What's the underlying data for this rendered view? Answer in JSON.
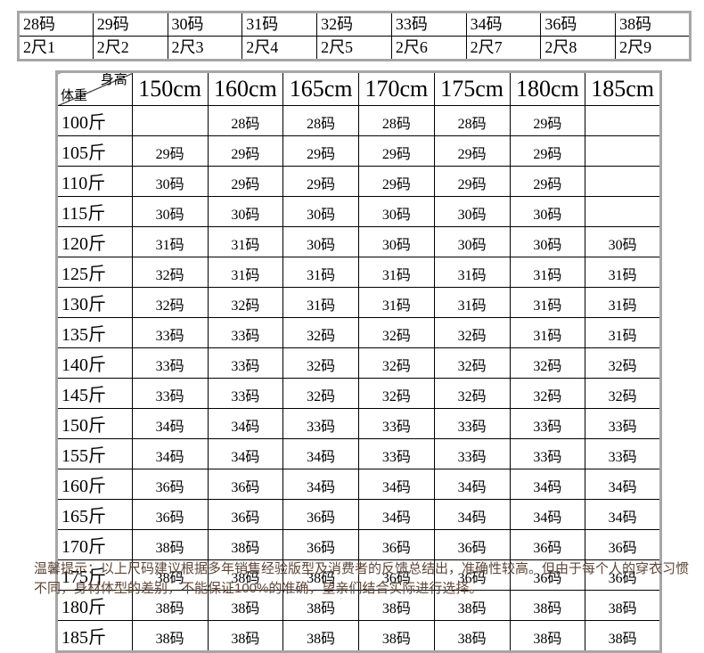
{
  "conversion_table": {
    "rows": [
      [
        "28码",
        "29码",
        "30码",
        "31码",
        "32码",
        "33码",
        "34码",
        "36码",
        "38码"
      ],
      [
        "2尺1",
        "2尺2",
        "2尺3",
        "2尺4",
        "2尺5",
        "2尺6",
        "2尺7",
        "2尺8",
        "2尺9"
      ]
    ]
  },
  "size_chart": {
    "corner": {
      "top_label": "身高",
      "bottom_label": "体重"
    },
    "height_headers": [
      "150cm",
      "160cm",
      "165cm",
      "170cm",
      "175cm",
      "180cm",
      "185cm"
    ],
    "rows": [
      {
        "weight": "100斤",
        "sizes": [
          "",
          "28码",
          "28码",
          "28码",
          "28码",
          "29码",
          ""
        ]
      },
      {
        "weight": "105斤",
        "sizes": [
          "29码",
          "29码",
          "29码",
          "29码",
          "29码",
          "29码",
          ""
        ]
      },
      {
        "weight": "110斤",
        "sizes": [
          "30码",
          "29码",
          "29码",
          "29码",
          "29码",
          "29码",
          ""
        ]
      },
      {
        "weight": "115斤",
        "sizes": [
          "30码",
          "30码",
          "30码",
          "30码",
          "30码",
          "30码",
          ""
        ]
      },
      {
        "weight": "120斤",
        "sizes": [
          "31码",
          "31码",
          "30码",
          "30码",
          "30码",
          "30码",
          "30码"
        ]
      },
      {
        "weight": "125斤",
        "sizes": [
          "32码",
          "31码",
          "31码",
          "31码",
          "31码",
          "31码",
          "31码"
        ]
      },
      {
        "weight": "130斤",
        "sizes": [
          "32码",
          "32码",
          "31码",
          "31码",
          "31码",
          "31码",
          "31码"
        ]
      },
      {
        "weight": "135斤",
        "sizes": [
          "33码",
          "33码",
          "32码",
          "32码",
          "32码",
          "31码",
          "31码"
        ]
      },
      {
        "weight": "140斤",
        "sizes": [
          "33码",
          "33码",
          "32码",
          "32码",
          "32码",
          "32码",
          "32码"
        ]
      },
      {
        "weight": "145斤",
        "sizes": [
          "33码",
          "33码",
          "32码",
          "32码",
          "32码",
          "32码",
          "32码"
        ]
      },
      {
        "weight": "150斤",
        "sizes": [
          "34码",
          "34码",
          "33码",
          "33码",
          "33码",
          "33码",
          "33码"
        ]
      },
      {
        "weight": "155斤",
        "sizes": [
          "34码",
          "34码",
          "34码",
          "33码",
          "33码",
          "33码",
          "33码"
        ]
      },
      {
        "weight": "160斤",
        "sizes": [
          "36码",
          "36码",
          "34码",
          "34码",
          "34码",
          "34码",
          "34码"
        ]
      },
      {
        "weight": "165斤",
        "sizes": [
          "36码",
          "36码",
          "36码",
          "34码",
          "34码",
          "34码",
          "34码"
        ]
      },
      {
        "weight": "170斤",
        "sizes": [
          "38码",
          "38码",
          "36码",
          "36码",
          "36码",
          "36码",
          "36码"
        ]
      },
      {
        "weight": "175斤",
        "sizes": [
          "38码",
          "38码",
          "38码",
          "36码",
          "36码",
          "36码",
          "36码"
        ]
      },
      {
        "weight": "180斤",
        "sizes": [
          "38码",
          "38码",
          "38码",
          "38码",
          "38码",
          "38码",
          "38码"
        ]
      },
      {
        "weight": "185斤",
        "sizes": [
          "38码",
          "38码",
          "38码",
          "38码",
          "38码",
          "38码",
          "38码"
        ]
      }
    ]
  },
  "note": {
    "text": "温馨提示：以上尺码建议根据多年销售经验版型及消费者的反馈总结出，准确性较高。但由于每个人的穿衣习惯不同，身材体型的差别，不能保证100%的准确，望亲们结合实际进行选择。"
  },
  "colors": {
    "grid_line": "#000000",
    "outer_border": "#a6a6a6",
    "note_text": "#5f4637"
  }
}
